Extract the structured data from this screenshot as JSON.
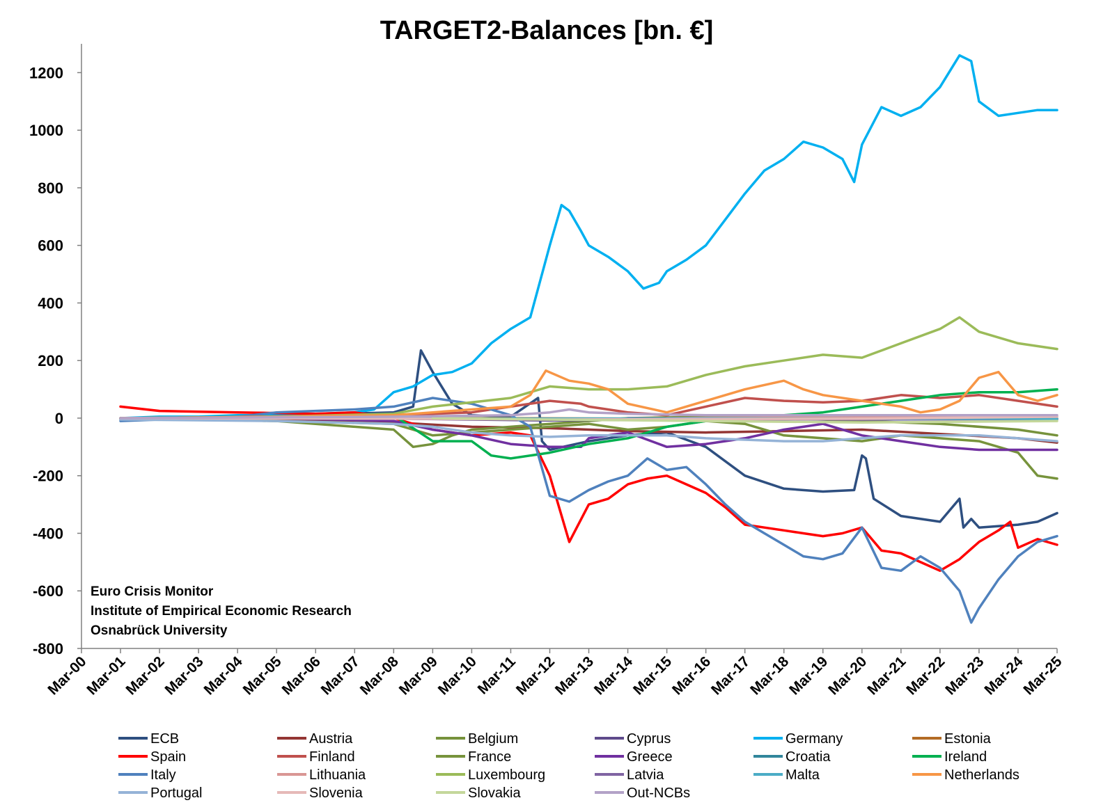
{
  "chart_data": {
    "type": "line",
    "title": "TARGET2-Balances [bn. €]",
    "xlabel": "",
    "ylabel": "",
    "ylim": [
      -800,
      1300
    ],
    "yticks": [
      1200,
      1000,
      800,
      600,
      400,
      200,
      0,
      -200,
      -400,
      -600,
      -800
    ],
    "xlim": [
      2000.0,
      2025.0
    ],
    "xticks": [
      "Mar-00",
      "Mar-01",
      "Mar-02",
      "Mar-03",
      "Mar-04",
      "Mar-05",
      "Mar-06",
      "Mar-07",
      "Mar-08",
      "Mar-09",
      "Mar-10",
      "Mar-11",
      "Mar-12",
      "Mar-13",
      "Mar-14",
      "Mar-15",
      "Mar-16",
      "Mar-17",
      "Mar-18",
      "Mar-19",
      "Mar-20",
      "Mar-21",
      "Mar-22",
      "Mar-23",
      "Mar-24",
      "Mar-25"
    ],
    "legend_position": "bottom",
    "grid": false,
    "annotations": [
      "Euro Crisis Monitor",
      "Institute of Empirical Economic Research",
      "Osnabrück University"
    ],
    "series": [
      {
        "name": "ECB",
        "color": "#2e4f80",
        "x": [
          2001.0,
          2008.0,
          2008.5,
          2008.7,
          2009.0,
          2009.5,
          2010.0,
          2011.0,
          2011.7,
          2011.8,
          2012.0,
          2013.0,
          2014.0,
          2015.0,
          2016.0,
          2017.0,
          2018.0,
          2019.0,
          2019.8,
          2020.0,
          2020.1,
          2020.3,
          2021.0,
          2022.0,
          2022.5,
          2022.6,
          2022.8,
          2023.0,
          2024.0,
          2024.5,
          2025.0
        ],
        "y": [
          -5,
          20,
          40,
          235,
          160,
          50,
          10,
          5,
          70,
          -80,
          -110,
          -80,
          -60,
          -50,
          -100,
          -200,
          -245,
          -255,
          -250,
          -130,
          -140,
          -280,
          -340,
          -360,
          -280,
          -380,
          -350,
          -380,
          -370,
          -360,
          -330
        ]
      },
      {
        "name": "Austria",
        "color": "#943634",
        "x": [
          2001.0,
          2005.0,
          2008.0,
          2010.0,
          2012.0,
          2014.0,
          2016.0,
          2018.0,
          2020.0,
          2022.0,
          2024.0,
          2025.0
        ],
        "y": [
          0,
          -5,
          -15,
          -30,
          -35,
          -45,
          -50,
          -45,
          -40,
          -55,
          -70,
          -85
        ]
      },
      {
        "name": "Belgium",
        "color": "#76923c",
        "x": [
          2001.0,
          2005.0,
          2008.0,
          2008.5,
          2009.0,
          2009.5,
          2010.0,
          2011.0,
          2012.0,
          2013.0,
          2014.0,
          2016.0,
          2018.0,
          2020.0,
          2022.0,
          2024.0,
          2025.0
        ],
        "y": [
          0,
          -10,
          -40,
          -100,
          -90,
          -60,
          -40,
          -30,
          -20,
          -10,
          0,
          5,
          0,
          -10,
          -20,
          -40,
          -60
        ]
      },
      {
        "name": "Cyprus",
        "color": "#5f4b8b",
        "x": [
          2001.0,
          2005.0,
          2008.0,
          2010.0,
          2012.0,
          2014.0,
          2016.0,
          2018.0,
          2020.0,
          2022.0,
          2024.0,
          2025.0
        ],
        "y": [
          0,
          0,
          -2,
          -5,
          -8,
          -6,
          -5,
          -4,
          -3,
          -3,
          -3,
          -3
        ]
      },
      {
        "name": "Germany",
        "color": "#00b0f0",
        "x": [
          2001.0,
          2002.0,
          2003.0,
          2004.0,
          2005.0,
          2006.0,
          2007.0,
          2007.5,
          2008.0,
          2008.5,
          2009.0,
          2009.5,
          2010.0,
          2010.5,
          2011.0,
          2011.5,
          2012.0,
          2012.3,
          2012.5,
          2012.8,
          2013.0,
          2013.5,
          2014.0,
          2014.4,
          2014.8,
          2015.0,
          2015.5,
          2016.0,
          2016.5,
          2017.0,
          2017.5,
          2018.0,
          2018.5,
          2019.0,
          2019.5,
          2019.8,
          2020.0,
          2020.5,
          2021.0,
          2021.5,
          2022.0,
          2022.5,
          2022.8,
          2023.0,
          2023.5,
          2024.0,
          2024.5,
          2025.0
        ],
        "y": [
          0,
          5,
          5,
          10,
          10,
          15,
          20,
          30,
          90,
          110,
          150,
          160,
          190,
          260,
          310,
          350,
          600,
          740,
          720,
          650,
          600,
          560,
          510,
          450,
          470,
          510,
          550,
          600,
          690,
          780,
          860,
          900,
          960,
          940,
          900,
          820,
          950,
          1080,
          1050,
          1080,
          1150,
          1260,
          1240,
          1100,
          1050,
          1060,
          1070,
          1070
        ]
      },
      {
        "name": "Estonia",
        "color": "#b36b24",
        "x": [
          2001.0,
          2010.0,
          2015.0,
          2020.0,
          2025.0
        ],
        "y": [
          0,
          0,
          -2,
          -2,
          -2
        ]
      },
      {
        "name": "Spain",
        "color": "#ff0000",
        "x": [
          2001.0,
          2002.0,
          2004.0,
          2006.0,
          2007.0,
          2008.0,
          2009.0,
          2010.0,
          2011.0,
          2011.5,
          2012.0,
          2012.5,
          2013.0,
          2013.5,
          2014.0,
          2014.5,
          2015.0,
          2015.5,
          2016.0,
          2016.5,
          2017.0,
          2017.5,
          2018.0,
          2018.5,
          2019.0,
          2019.5,
          2020.0,
          2020.5,
          2021.0,
          2021.5,
          2022.0,
          2022.5,
          2023.0,
          2023.5,
          2023.8,
          2024.0,
          2024.5,
          2025.0
        ],
        "y": [
          40,
          25,
          20,
          15,
          20,
          0,
          -40,
          -60,
          -50,
          -60,
          -200,
          -430,
          -300,
          -280,
          -230,
          -210,
          -200,
          -230,
          -260,
          -310,
          -370,
          -380,
          -390,
          -400,
          -410,
          -400,
          -380,
          -460,
          -470,
          -500,
          -530,
          -490,
          -430,
          -390,
          -360,
          -450,
          -420,
          -440
        ]
      },
      {
        "name": "Finland",
        "color": "#c0504d",
        "x": [
          2001.0,
          2005.0,
          2008.0,
          2010.0,
          2011.0,
          2012.0,
          2012.8,
          2013.0,
          2014.0,
          2015.0,
          2016.0,
          2017.0,
          2018.0,
          2019.0,
          2020.0,
          2021.0,
          2022.0,
          2023.0,
          2024.0,
          2025.0
        ],
        "y": [
          0,
          5,
          10,
          20,
          40,
          60,
          50,
          40,
          20,
          10,
          40,
          70,
          60,
          55,
          60,
          80,
          70,
          80,
          60,
          40
        ]
      },
      {
        "name": "France",
        "color": "#77933c",
        "x": [
          2001.0,
          2005.0,
          2008.0,
          2009.0,
          2010.0,
          2011.0,
          2012.0,
          2013.0,
          2014.0,
          2015.0,
          2016.0,
          2017.0,
          2018.0,
          2019.0,
          2020.0,
          2021.0,
          2022.0,
          2023.0,
          2024.0,
          2024.5,
          2025.0
        ],
        "y": [
          0,
          -10,
          -20,
          -60,
          -50,
          -40,
          -30,
          -20,
          -40,
          -30,
          -10,
          -20,
          -60,
          -70,
          -80,
          -60,
          -70,
          -80,
          -120,
          -200,
          -210
        ]
      },
      {
        "name": "Greece",
        "color": "#7030a0",
        "x": [
          2001.0,
          2005.0,
          2008.0,
          2009.0,
          2010.0,
          2011.0,
          2012.0,
          2012.8,
          2013.0,
          2014.0,
          2015.0,
          2016.0,
          2017.0,
          2018.0,
          2019.0,
          2020.0,
          2021.0,
          2022.0,
          2023.0,
          2024.0,
          2025.0
        ],
        "y": [
          0,
          0,
          -10,
          -40,
          -60,
          -90,
          -100,
          -100,
          -70,
          -50,
          -100,
          -90,
          -70,
          -40,
          -20,
          -60,
          -80,
          -100,
          -110,
          -110,
          -110
        ]
      },
      {
        "name": "Croatia",
        "color": "#31869b",
        "x": [
          2023.0,
          2024.0,
          2025.0
        ],
        "y": [
          0,
          -2,
          -3
        ]
      },
      {
        "name": "Ireland",
        "color": "#00b050",
        "x": [
          2001.0,
          2005.0,
          2008.0,
          2009.0,
          2010.0,
          2010.5,
          2011.0,
          2012.0,
          2013.0,
          2014.0,
          2015.0,
          2016.0,
          2017.0,
          2018.0,
          2019.0,
          2020.0,
          2021.0,
          2022.0,
          2023.0,
          2024.0,
          2025.0
        ],
        "y": [
          0,
          5,
          10,
          -80,
          -80,
          -130,
          -140,
          -120,
          -90,
          -70,
          -30,
          -10,
          0,
          10,
          20,
          40,
          60,
          80,
          90,
          90,
          100
        ]
      },
      {
        "name": "Italy",
        "color": "#4f81bd",
        "x": [
          2001.0,
          2002.0,
          2004.0,
          2005.0,
          2006.0,
          2007.0,
          2008.0,
          2009.0,
          2010.0,
          2011.0,
          2011.5,
          2012.0,
          2012.5,
          2013.0,
          2013.5,
          2014.0,
          2014.5,
          2015.0,
          2015.5,
          2016.0,
          2016.5,
          2017.0,
          2017.5,
          2018.0,
          2018.5,
          2019.0,
          2019.5,
          2020.0,
          2020.5,
          2021.0,
          2021.5,
          2022.0,
          2022.5,
          2022.8,
          2023.0,
          2023.5,
          2024.0,
          2024.5,
          2025.0
        ],
        "y": [
          -10,
          -5,
          5,
          20,
          25,
          30,
          40,
          70,
          50,
          10,
          -30,
          -270,
          -290,
          -250,
          -220,
          -200,
          -140,
          -180,
          -170,
          -230,
          -300,
          -360,
          -400,
          -440,
          -480,
          -490,
          -470,
          -380,
          -520,
          -530,
          -480,
          -520,
          -600,
          -710,
          -660,
          -560,
          -480,
          -430,
          -410
        ]
      },
      {
        "name": "Lithuania",
        "color": "#d99694",
        "x": [
          2015.0,
          2018.0,
          2020.0,
          2022.0,
          2025.0
        ],
        "y": [
          0,
          2,
          3,
          5,
          5
        ]
      },
      {
        "name": "Luxembourg",
        "color": "#9bbb59",
        "x": [
          2001.0,
          2005.0,
          2008.0,
          2009.0,
          2010.0,
          2011.0,
          2012.0,
          2013.0,
          2014.0,
          2015.0,
          2016.0,
          2017.0,
          2018.0,
          2019.0,
          2020.0,
          2021.0,
          2022.0,
          2022.5,
          2023.0,
          2024.0,
          2025.0
        ],
        "y": [
          0,
          5,
          15,
          40,
          55,
          70,
          110,
          100,
          100,
          110,
          150,
          180,
          200,
          220,
          210,
          260,
          310,
          350,
          300,
          260,
          240
        ]
      },
      {
        "name": "Latvia",
        "color": "#8064a2",
        "x": [
          2014.0,
          2016.0,
          2018.0,
          2020.0,
          2022.0,
          2025.0
        ],
        "y": [
          0,
          -2,
          -3,
          -5,
          -4,
          -3
        ]
      },
      {
        "name": "Malta",
        "color": "#4bacc6",
        "x": [
          2008.0,
          2012.0,
          2016.0,
          2020.0,
          2025.0
        ],
        "y": [
          0,
          -2,
          -1,
          -2,
          -2
        ]
      },
      {
        "name": "Netherlands",
        "color": "#f79646",
        "x": [
          2001.0,
          2005.0,
          2008.0,
          2009.0,
          2010.0,
          2011.0,
          2011.5,
          2011.9,
          2012.5,
          2013.0,
          2013.5,
          2014.0,
          2015.0,
          2016.0,
          2017.0,
          2018.0,
          2018.5,
          2019.0,
          2020.0,
          2021.0,
          2021.5,
          2022.0,
          2022.5,
          2023.0,
          2023.5,
          2024.0,
          2024.5,
          2025.0
        ],
        "y": [
          0,
          5,
          10,
          20,
          30,
          40,
          80,
          165,
          130,
          120,
          100,
          50,
          20,
          60,
          100,
          130,
          100,
          80,
          60,
          40,
          20,
          30,
          60,
          140,
          160,
          80,
          60,
          80
        ]
      },
      {
        "name": "Portugal",
        "color": "#95b3d7",
        "x": [
          2001.0,
          2005.0,
          2008.0,
          2009.0,
          2010.0,
          2011.0,
          2012.0,
          2013.0,
          2014.0,
          2015.0,
          2016.0,
          2017.0,
          2018.0,
          2019.0,
          2020.0,
          2021.0,
          2022.0,
          2023.0,
          2024.0,
          2025.0
        ],
        "y": [
          -5,
          -10,
          -20,
          -30,
          -50,
          -60,
          -65,
          -60,
          -60,
          -60,
          -70,
          -75,
          -80,
          -80,
          -70,
          -60,
          -60,
          -60,
          -70,
          -80
        ]
      },
      {
        "name": "Slovenia",
        "color": "#e6b9b8",
        "x": [
          2001.0,
          2008.0,
          2012.0,
          2016.0,
          2020.0,
          2025.0
        ],
        "y": [
          0,
          -2,
          -5,
          -3,
          -2,
          5
        ]
      },
      {
        "name": "Slovakia",
        "color": "#c4d79b",
        "x": [
          2009.0,
          2012.0,
          2016.0,
          2020.0,
          2025.0
        ],
        "y": [
          0,
          -5,
          -10,
          -15,
          -10
        ]
      },
      {
        "name": "Out-NCBs",
        "color": "#b3a2c7",
        "x": [
          2001.0,
          2008.0,
          2011.0,
          2012.0,
          2012.5,
          2013.0,
          2014.0,
          2016.0,
          2018.0,
          2020.0,
          2022.0,
          2025.0
        ],
        "y": [
          0,
          5,
          10,
          20,
          30,
          20,
          15,
          10,
          10,
          10,
          10,
          10
        ]
      }
    ]
  }
}
